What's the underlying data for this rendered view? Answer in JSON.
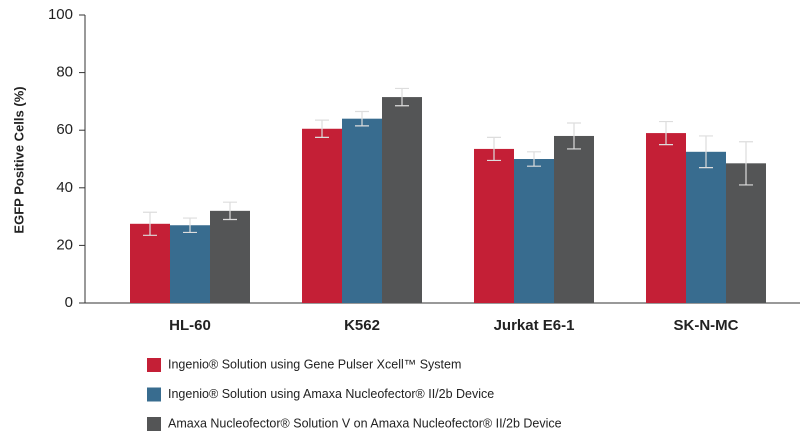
{
  "chart_data": {
    "type": "bar",
    "y_label": "EGFP Positive Cells (%)",
    "categories": [
      "HL-60",
      "K562",
      "Jurkat E6-1",
      "SK-N-MC"
    ],
    "series": [
      {
        "name": "Ingenio® Solution using Gene Pulser Xcell™ System",
        "color": "#c41f36",
        "values": [
          27.5,
          60.5,
          53.5,
          59
        ],
        "errors": [
          4,
          3,
          4,
          4
        ]
      },
      {
        "name": "Ingenio® Solution using Amaxa Nucleofector® II/2b Device",
        "color": "#386c8f",
        "values": [
          27,
          64,
          50,
          52.5
        ],
        "errors": [
          2.5,
          2.5,
          2.5,
          5.5
        ]
      },
      {
        "name": "Amaxa Nucleofector® Solution V on Amaxa Nucleofector® II/2b Device",
        "color": "#545556",
        "values": [
          32,
          71.5,
          58,
          48.5
        ],
        "errors": [
          3,
          3,
          4.5,
          7.5
        ]
      }
    ],
    "ylim": [
      0,
      100
    ],
    "yticks": [
      0,
      20,
      40,
      60,
      80,
      100
    ],
    "grid": false
  }
}
